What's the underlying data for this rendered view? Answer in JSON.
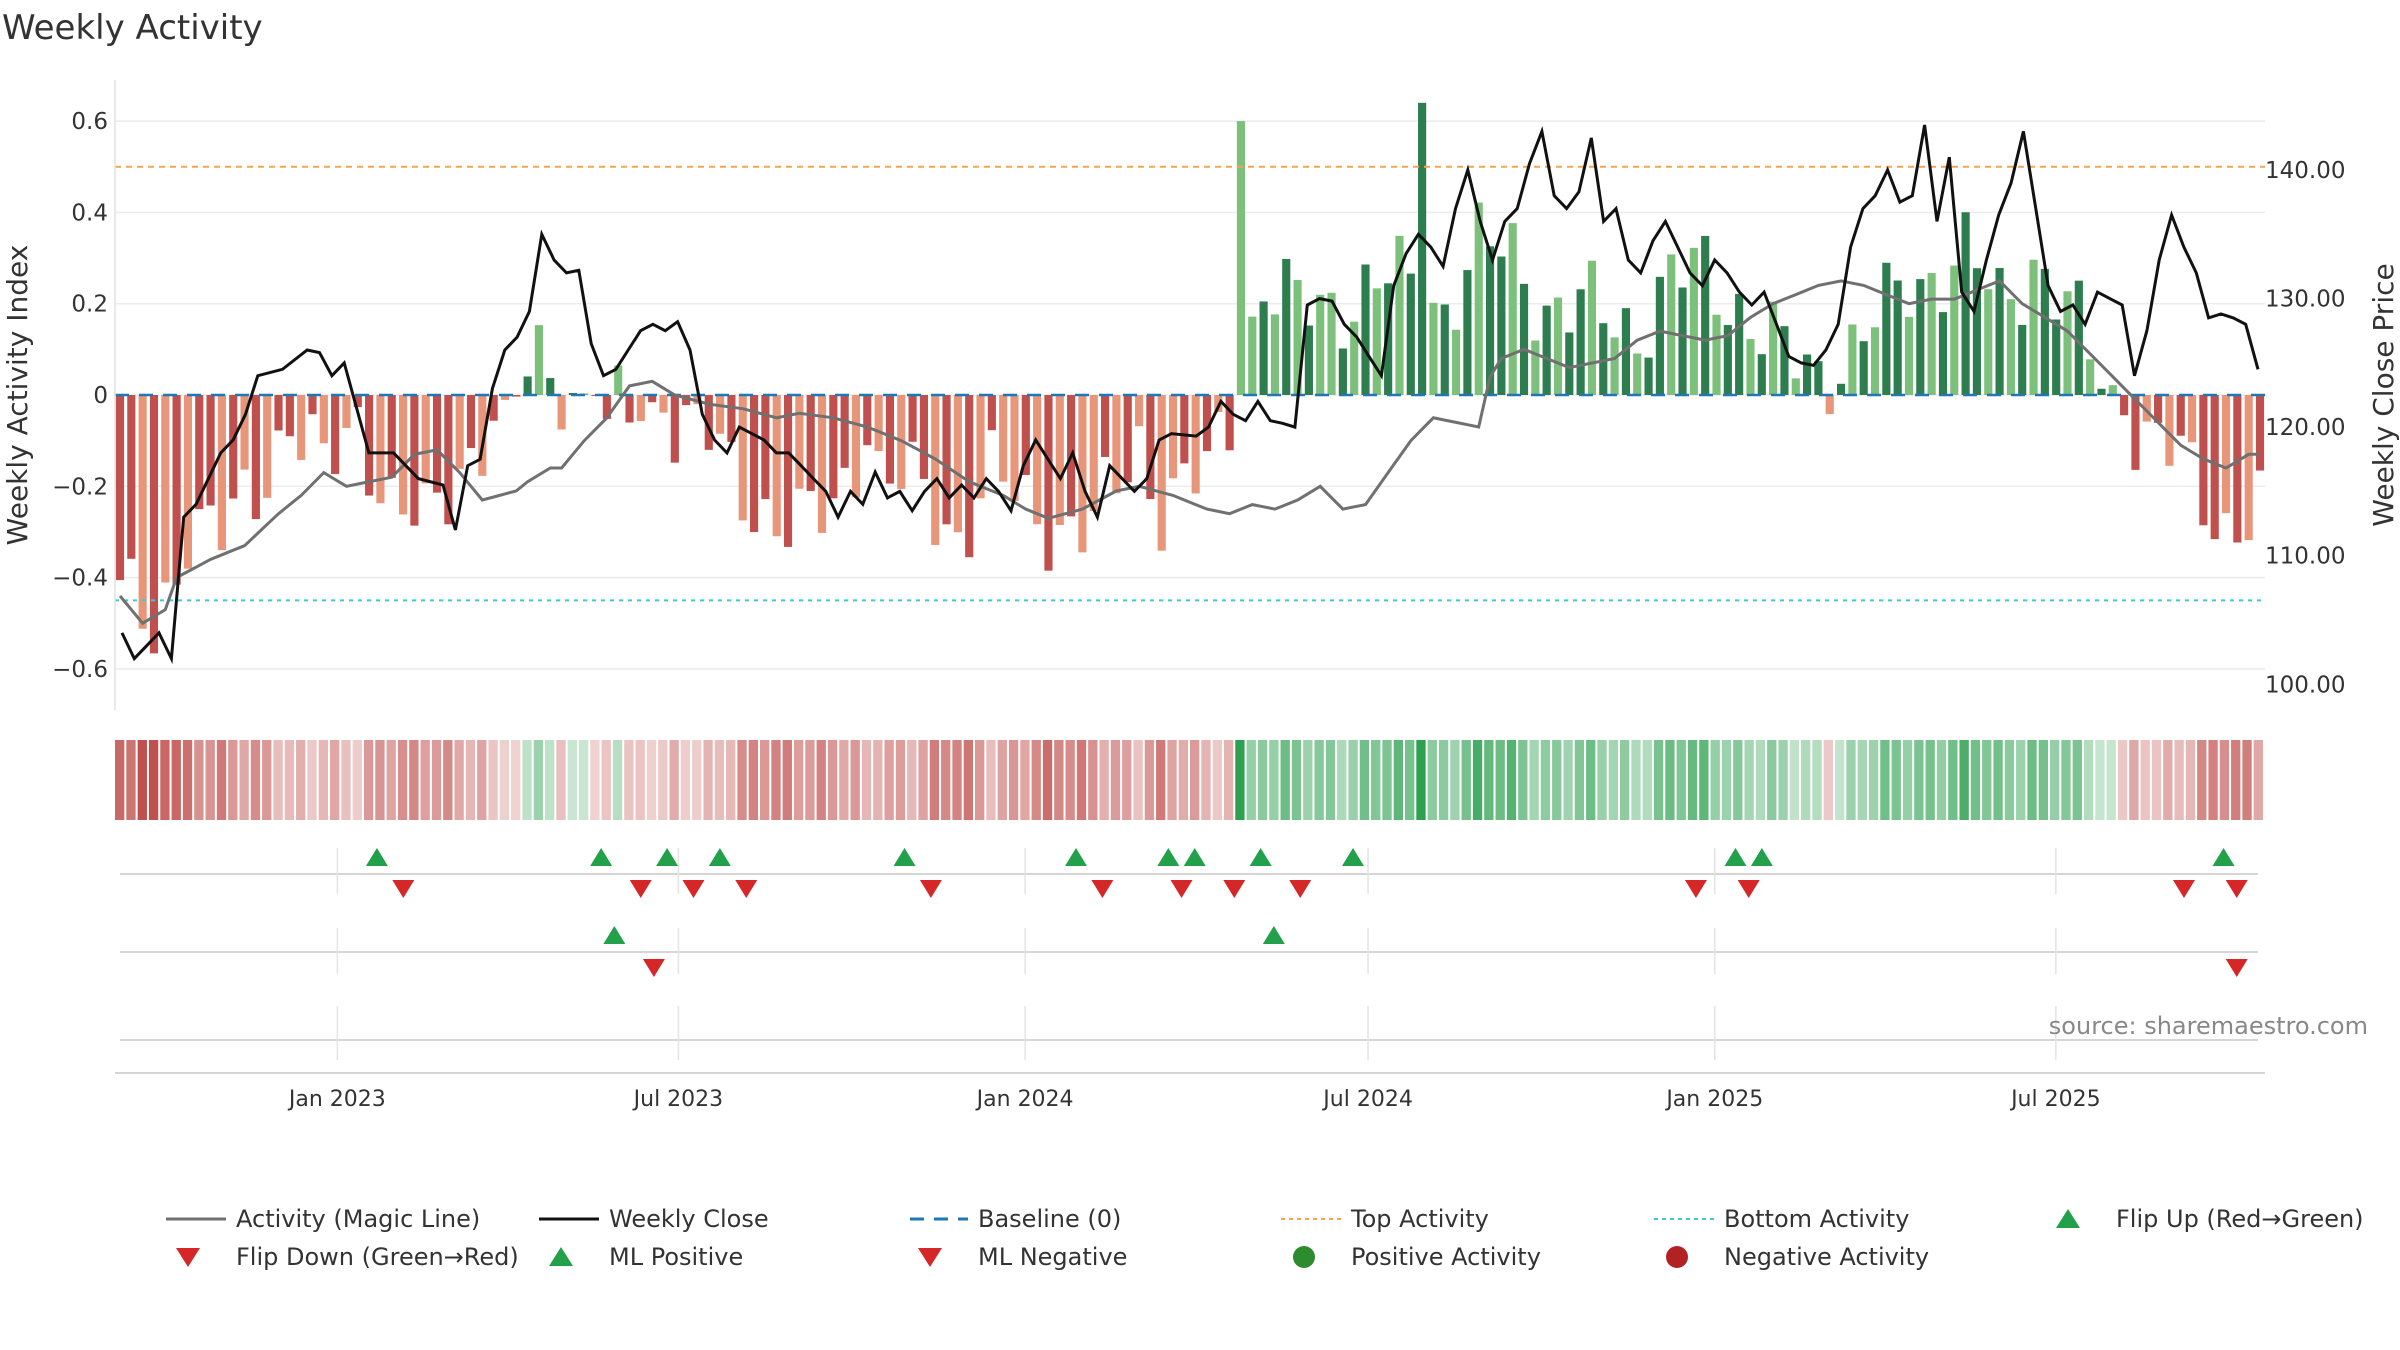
{
  "title": "Weekly Activity",
  "source": "source: sharemaestro.com",
  "colors": {
    "neg_dark": "#c0504d",
    "neg_light": "#e8967a",
    "pos_dark": "#2e7d4f",
    "pos_light": "#7cc07c",
    "magic": "#707070",
    "close": "#111111",
    "baseline": "#1f77b4",
    "top": "#f4a350",
    "bottom": "#3ccbd6",
    "flip_up": "#22a04a",
    "flip_down": "#d62728",
    "pos_dot": "#2e8b2e",
    "neg_dot": "#b22222"
  },
  "chart_data": {
    "type": "bar",
    "title": "Weekly Activity",
    "ylabel": "Weekly Activity Index",
    "y2label": "Weekly Close Price",
    "ylim": [
      -0.69,
      0.69
    ],
    "y2lim": [
      98,
      147
    ],
    "yticks": [
      "0.6",
      "0.4",
      "0.2",
      "0",
      "−0.2",
      "−0.4",
      "−0.6"
    ],
    "ytick_values": [
      0.6,
      0.4,
      0.2,
      0,
      -0.2,
      -0.4,
      -0.6
    ],
    "y2ticks": [
      "140.00",
      "130.00",
      "120.00",
      "110.00",
      "100.00"
    ],
    "y2tick_values": [
      140,
      130,
      120,
      110,
      100
    ],
    "x_start": "2022-09-05",
    "x_end": "2025-10-20",
    "xticks": [
      "Jan 2023",
      "Jul 2023",
      "Jan 2024",
      "Jul 2024",
      "Jan 2025",
      "Jul 2025"
    ],
    "xtick_dates": [
      "2023-01-01",
      "2023-07-01",
      "2024-01-01",
      "2024-07-01",
      "2025-01-01",
      "2025-07-01"
    ],
    "top_activity": 0.5,
    "bottom_activity": -0.45,
    "baseline": 0,
    "activity_segments": [
      [
        0,
        -0.45
      ],
      [
        3,
        -0.52
      ],
      [
        6,
        -0.28
      ],
      [
        9,
        -0.32
      ],
      [
        12,
        -0.2
      ],
      [
        15,
        -0.05
      ],
      [
        18,
        -0.18
      ],
      [
        21,
        -0.05
      ],
      [
        24,
        -0.24
      ],
      [
        27,
        -0.3
      ],
      [
        30,
        -0.15
      ],
      [
        33,
        -0.05
      ],
      [
        37,
        0.08
      ],
      [
        40,
        0.02
      ],
      [
        44,
        -0.05
      ],
      [
        48,
        -0.03
      ],
      [
        52,
        -0.1
      ],
      [
        54,
        -0.18
      ],
      [
        57,
        -0.25
      ],
      [
        60,
        -0.3
      ],
      [
        63,
        -0.25
      ],
      [
        66,
        -0.05
      ],
      [
        67,
        -0.18
      ],
      [
        71,
        -0.22
      ],
      [
        74,
        -0.3
      ],
      [
        77,
        -0.18
      ],
      [
        80,
        -0.25
      ],
      [
        83,
        -0.28
      ],
      [
        86,
        -0.3
      ],
      [
        90,
        -0.1
      ],
      [
        92,
        -0.24
      ],
      [
        96,
        -0.18
      ],
      [
        98,
        -0.05
      ],
      [
        101,
        0.25
      ],
      [
        104,
        0.18
      ],
      [
        107,
        0.2
      ],
      [
        112,
        0.25
      ],
      [
        117,
        0.2
      ],
      [
        120,
        0.32
      ],
      [
        123,
        0.3
      ],
      [
        126,
        0.2
      ],
      [
        130,
        0.18
      ],
      [
        134,
        0.15
      ],
      [
        137,
        0.25
      ],
      [
        140,
        0.27
      ],
      [
        143,
        0.2
      ],
      [
        147,
        0.08
      ],
      [
        150,
        0.05
      ],
      [
        153,
        0.1
      ],
      [
        156,
        0.18
      ],
      [
        158,
        0.25
      ],
      [
        163,
        0.3
      ],
      [
        166,
        0.2
      ],
      [
        169,
        0.3
      ],
      [
        172,
        0.18
      ],
      [
        175,
        0.05
      ],
      [
        179,
        -0.1
      ],
      [
        182,
        -0.15
      ],
      [
        186,
        -0.28
      ],
      [
        189,
        -0.26
      ]
    ],
    "close_segments": [
      [
        0,
        104
      ],
      [
        1,
        102
      ],
      [
        3,
        104
      ],
      [
        4,
        102
      ],
      [
        5,
        113
      ],
      [
        6,
        114
      ],
      [
        8,
        118
      ],
      [
        9,
        119
      ],
      [
        10,
        121
      ],
      [
        11,
        124
      ],
      [
        13,
        124.5
      ],
      [
        15,
        126
      ],
      [
        16,
        125.8
      ],
      [
        17,
        124
      ],
      [
        18,
        125
      ],
      [
        20,
        118
      ],
      [
        22,
        118
      ],
      [
        24,
        116
      ],
      [
        26,
        115.5
      ],
      [
        27,
        112
      ],
      [
        28,
        117
      ],
      [
        29,
        117.5
      ],
      [
        30,
        123
      ],
      [
        31,
        126
      ],
      [
        32,
        127
      ],
      [
        33,
        129
      ],
      [
        34,
        135
      ],
      [
        35,
        133
      ],
      [
        36,
        132
      ],
      [
        37,
        132.2
      ],
      [
        38,
        126.5
      ],
      [
        39,
        124
      ],
      [
        40,
        124.5
      ],
      [
        41,
        126
      ],
      [
        42,
        127.5
      ],
      [
        43,
        128
      ],
      [
        44,
        127.5
      ],
      [
        45,
        128.2
      ],
      [
        46,
        126
      ],
      [
        47,
        121
      ],
      [
        48,
        119
      ],
      [
        49,
        118
      ],
      [
        50,
        120
      ],
      [
        51,
        119.5
      ],
      [
        52,
        119
      ],
      [
        53,
        118
      ],
      [
        54,
        118
      ],
      [
        55,
        117
      ],
      [
        56,
        116
      ],
      [
        57,
        115
      ],
      [
        58,
        113
      ],
      [
        59,
        115
      ],
      [
        60,
        114
      ],
      [
        61,
        116.5
      ],
      [
        62,
        114.5
      ],
      [
        63,
        115
      ],
      [
        64,
        113.5
      ],
      [
        65,
        115
      ],
      [
        66,
        116
      ],
      [
        67,
        114.5
      ],
      [
        68,
        115.5
      ],
      [
        69,
        114.5
      ],
      [
        70,
        116
      ],
      [
        71,
        115
      ],
      [
        72,
        113.5
      ],
      [
        73,
        117
      ],
      [
        74,
        119
      ],
      [
        75,
        117.5
      ],
      [
        76,
        116
      ],
      [
        77,
        118
      ],
      [
        78,
        115
      ],
      [
        79,
        113
      ],
      [
        80,
        117
      ],
      [
        81,
        116
      ],
      [
        82,
        115
      ],
      [
        83,
        116
      ],
      [
        84,
        119
      ],
      [
        85,
        119.5
      ],
      [
        87,
        119.3
      ],
      [
        88,
        120
      ],
      [
        89,
        122
      ],
      [
        90,
        121
      ],
      [
        91,
        120.5
      ],
      [
        92,
        122
      ],
      [
        93,
        120.5
      ],
      [
        94,
        120.3
      ],
      [
        95,
        120
      ],
      [
        96,
        129.5
      ],
      [
        97,
        130
      ],
      [
        98,
        129.8
      ],
      [
        99,
        128
      ],
      [
        100,
        127
      ],
      [
        101,
        125.5
      ],
      [
        102,
        124
      ],
      [
        103,
        131
      ],
      [
        104,
        133.5
      ],
      [
        105,
        135
      ],
      [
        106,
        134
      ],
      [
        107,
        132.5
      ],
      [
        108,
        137
      ],
      [
        109,
        140
      ],
      [
        110,
        136
      ],
      [
        111,
        133
      ],
      [
        112,
        136
      ],
      [
        113,
        137
      ],
      [
        114,
        140.5
      ],
      [
        115,
        143
      ],
      [
        116,
        138
      ],
      [
        117,
        137
      ],
      [
        118,
        138.3
      ],
      [
        119,
        142.5
      ],
      [
        120,
        136
      ],
      [
        121,
        137
      ],
      [
        122,
        133
      ],
      [
        123,
        132
      ],
      [
        124,
        134.5
      ],
      [
        125,
        136
      ],
      [
        126,
        134
      ],
      [
        127,
        132
      ],
      [
        128,
        131
      ],
      [
        129,
        133
      ],
      [
        130,
        132
      ],
      [
        131,
        130.5
      ],
      [
        132,
        129.5
      ],
      [
        133,
        130.5
      ],
      [
        134,
        128
      ],
      [
        135,
        125.5
      ],
      [
        136,
        125
      ],
      [
        137,
        124.8
      ],
      [
        138,
        126
      ],
      [
        139,
        128
      ],
      [
        140,
        134
      ],
      [
        141,
        137
      ],
      [
        142,
        138
      ],
      [
        143,
        140
      ],
      [
        144,
        137.5
      ],
      [
        145,
        138
      ],
      [
        146,
        143.5
      ],
      [
        147,
        136
      ],
      [
        148,
        141
      ],
      [
        149,
        130.5
      ],
      [
        150,
        129
      ],
      [
        151,
        133
      ],
      [
        152,
        136.5
      ],
      [
        153,
        139
      ],
      [
        154,
        143
      ],
      [
        155,
        137
      ],
      [
        156,
        131
      ],
      [
        157,
        129
      ],
      [
        158,
        129.5
      ],
      [
        159,
        128
      ],
      [
        160,
        130.5
      ],
      [
        161,
        130
      ],
      [
        162,
        129.5
      ],
      [
        163,
        124
      ],
      [
        164,
        127.5
      ],
      [
        165,
        133
      ],
      [
        166,
        136.5
      ],
      [
        167,
        134
      ],
      [
        168,
        132
      ],
      [
        169,
        128.5
      ],
      [
        170,
        128.8
      ],
      [
        171,
        128.5
      ],
      [
        172,
        128
      ],
      [
        173,
        124.5
      ]
    ],
    "magic_segments": [
      [
        0,
        -0.44
      ],
      [
        2,
        -0.5
      ],
      [
        4,
        -0.47
      ],
      [
        5,
        -0.4
      ],
      [
        8,
        -0.36
      ],
      [
        11,
        -0.33
      ],
      [
        14,
        -0.26
      ],
      [
        16,
        -0.22
      ],
      [
        18,
        -0.17
      ],
      [
        20,
        -0.2
      ],
      [
        22,
        -0.19
      ],
      [
        24,
        -0.18
      ],
      [
        26,
        -0.13
      ],
      [
        28,
        -0.12
      ],
      [
        30,
        -0.17
      ],
      [
        32,
        -0.23
      ],
      [
        35,
        -0.21
      ],
      [
        36,
        -0.19
      ],
      [
        38,
        -0.16
      ],
      [
        39,
        -0.16
      ],
      [
        41,
        -0.1
      ],
      [
        43,
        -0.05
      ],
      [
        45,
        0.02
      ],
      [
        47,
        0.03
      ],
      [
        49,
        0.0
      ],
      [
        52,
        -0.02
      ],
      [
        55,
        -0.03
      ],
      [
        58,
        -0.05
      ],
      [
        60,
        -0.04
      ],
      [
        63,
        -0.05
      ],
      [
        66,
        -0.07
      ],
      [
        69,
        -0.1
      ],
      [
        72,
        -0.14
      ],
      [
        75,
        -0.19
      ],
      [
        78,
        -0.22
      ],
      [
        80,
        -0.25
      ],
      [
        82,
        -0.27
      ],
      [
        85,
        -0.25
      ],
      [
        88,
        -0.21
      ],
      [
        90,
        -0.2
      ],
      [
        93,
        -0.22
      ],
      [
        96,
        -0.25
      ],
      [
        98,
        -0.26
      ],
      [
        100,
        -0.24
      ],
      [
        102,
        -0.25
      ],
      [
        104,
        -0.23
      ],
      [
        106,
        -0.2
      ],
      [
        108,
        -0.25
      ],
      [
        110,
        -0.24
      ],
      [
        112,
        -0.17
      ],
      [
        114,
        -0.1
      ],
      [
        116,
        -0.05
      ],
      [
        118,
        -0.06
      ],
      [
        120,
        -0.07
      ],
      [
        121,
        0.04
      ],
      [
        122,
        0.08
      ],
      [
        124,
        0.1
      ],
      [
        126,
        0.08
      ],
      [
        128,
        0.06
      ],
      [
        130,
        0.07
      ],
      [
        132,
        0.08
      ],
      [
        134,
        0.12
      ],
      [
        136,
        0.14
      ],
      [
        138,
        0.13
      ],
      [
        140,
        0.12
      ],
      [
        142,
        0.13
      ],
      [
        144,
        0.17
      ],
      [
        146,
        0.2
      ],
      [
        148,
        0.22
      ],
      [
        150,
        0.24
      ],
      [
        152,
        0.25
      ],
      [
        154,
        0.24
      ],
      [
        156,
        0.22
      ],
      [
        158,
        0.2
      ],
      [
        160,
        0.21
      ],
      [
        162,
        0.21
      ],
      [
        164,
        0.23
      ],
      [
        166,
        0.25
      ],
      [
        168,
        0.2
      ],
      [
        170,
        0.17
      ],
      [
        172,
        0.14
      ],
      [
        174,
        0.09
      ],
      [
        176,
        0.04
      ],
      [
        178,
        -0.01
      ],
      [
        180,
        -0.06
      ],
      [
        182,
        -0.11
      ],
      [
        184,
        -0.14
      ],
      [
        186,
        -0.16
      ],
      [
        188,
        -0.13
      ]
    ],
    "flip_up_x": [
      "2023-01-22",
      "2023-05-21",
      "2023-06-25",
      "2023-07-23",
      "2023-10-29",
      "2024-01-28",
      "2024-03-17",
      "2024-03-31",
      "2024-05-05",
      "2024-06-23",
      "2025-01-12",
      "2025-01-26",
      "2025-09-28"
    ],
    "flip_down_x": [
      "2023-02-05",
      "2023-06-11",
      "2023-07-09",
      "2023-08-06",
      "2023-11-12",
      "2024-02-11",
      "2024-03-24",
      "2024-04-21",
      "2024-05-26",
      "2024-12-22",
      "2025-01-19",
      "2025-09-07",
      "2025-10-05"
    ],
    "ml_positive_x": [
      "2023-05-28",
      "2024-05-12"
    ],
    "ml_negative_x": [
      "2023-06-18",
      "2025-10-05"
    ],
    "legend": [
      "Activity (Magic Line)",
      "Weekly Close",
      "Baseline (0)",
      "Top Activity",
      "Bottom Activity",
      "Flip Up (Red→Green)",
      "Flip Down (Green→Red)",
      "ML Positive",
      "ML Negative",
      "Positive Activity",
      "Negative Activity"
    ]
  }
}
